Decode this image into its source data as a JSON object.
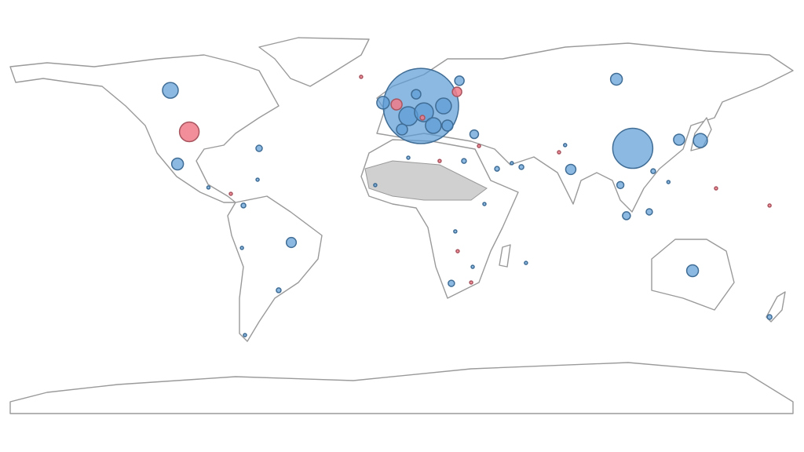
{
  "chart_data": {
    "type": "bubble-map",
    "series": [
      {
        "color": "#5b9bd5",
        "points": [
          {
            "lon": 8.7,
            "lat": 48.0,
            "size": 2300
          },
          {
            "lon": -106.5,
            "lat": 55.2,
            "size": 100
          },
          {
            "lon": -103.2,
            "lat": 21.3,
            "size": 56
          },
          {
            "lon": -65.7,
            "lat": 28.5,
            "size": 16
          },
          {
            "lon": -50.9,
            "lat": -14.8,
            "size": 40
          },
          {
            "lon": 106.1,
            "lat": 28.5,
            "size": 650
          },
          {
            "lon": 98.6,
            "lat": 60.3,
            "size": 56
          },
          {
            "lon": 137.2,
            "lat": 32.1,
            "size": 80
          },
          {
            "lon": 127.4,
            "lat": 32.5,
            "size": 49
          },
          {
            "lon": 77.6,
            "lat": 18.8,
            "size": 42
          },
          {
            "lon": 133.6,
            "lat": -27.8,
            "size": 56
          },
          {
            "lon": 33.2,
            "lat": 35.0,
            "size": 30
          },
          {
            "lon": 103.2,
            "lat": -2.5,
            "size": 25
          },
          {
            "lon": 113.7,
            "lat": -0.7,
            "size": 16
          },
          {
            "lon": 100.4,
            "lat": 11.6,
            "size": 20
          },
          {
            "lon": 169.0,
            "lat": -49.1,
            "size": 9
          },
          {
            "lon": -8.7,
            "lat": 49.5,
            "size": 64
          },
          {
            "lon": 2.9,
            "lat": 43.3,
            "size": 144
          },
          {
            "lon": 10.1,
            "lat": 45.1,
            "size": 144
          },
          {
            "lon": 19.1,
            "lat": 48.0,
            "size": 100
          },
          {
            "lon": 14.4,
            "lat": 39.0,
            "size": 100
          },
          {
            "lon": 0.0,
            "lat": 37.2,
            "size": 49
          },
          {
            "lon": 26.4,
            "lat": 59.6,
            "size": 36
          },
          {
            "lon": 20.9,
            "lat": 39.0,
            "size": 49
          },
          {
            "lon": 6.5,
            "lat": 53.4,
            "size": 36
          },
          {
            "lon": 22.7,
            "lat": -33.6,
            "size": 16
          },
          {
            "lon": -56.7,
            "lat": -36.8,
            "size": 9
          },
          {
            "lon": -72.2,
            "lat": -57.4,
            "size": 4
          },
          {
            "lon": -73.6,
            "lat": -17.3,
            "size": 4
          },
          {
            "lon": 28.5,
            "lat": 22.7,
            "size": 9
          },
          {
            "lon": 50.5,
            "lat": 21.7,
            "size": 4
          },
          {
            "lon": 75.0,
            "lat": 30.0,
            "size": 4
          },
          {
            "lon": 115.5,
            "lat": 18.0,
            "size": 9
          },
          {
            "lon": 54.9,
            "lat": 19.9,
            "size": 9
          },
          {
            "lon": 43.7,
            "lat": 19.1,
            "size": 9
          },
          {
            "lon": 2.9,
            "lat": 24.2,
            "size": 4
          },
          {
            "lon": 37.9,
            "lat": 2.9,
            "size": 4
          },
          {
            "lon": 24.5,
            "lat": -9.7,
            "size": 4
          },
          {
            "lon": 32.5,
            "lat": -26.0,
            "size": 4
          },
          {
            "lon": 57.0,
            "lat": -24.2,
            "size": 4
          },
          {
            "lon": -12.3,
            "lat": 11.6,
            "size": 4
          },
          {
            "lon": -72.9,
            "lat": 2.2,
            "size": 9
          },
          {
            "lon": -89.0,
            "lat": 10.5,
            "size": 4
          },
          {
            "lon": -66.4,
            "lat": 14.1,
            "size": 4
          },
          {
            "lon": 122.5,
            "lat": 13.0,
            "size": 4
          }
        ]
      },
      {
        "color": "#f07a88",
        "points": [
          {
            "lon": -97.8,
            "lat": 36.1,
            "size": 156
          },
          {
            "lon": -2.5,
            "lat": 48.7,
            "size": 49
          },
          {
            "lon": 25.3,
            "lat": 54.5,
            "size": 36
          },
          {
            "lon": 9.4,
            "lat": 42.6,
            "size": 9
          },
          {
            "lon": -18.8,
            "lat": 61.4,
            "size": 4
          },
          {
            "lon": 35.4,
            "lat": 29.6,
            "size": 4
          },
          {
            "lon": 25.6,
            "lat": -18.8,
            "size": 4
          },
          {
            "lon": 31.8,
            "lat": -33.2,
            "size": 4
          },
          {
            "lon": 144.4,
            "lat": 10.1,
            "size": 4
          },
          {
            "lon": 169.0,
            "lat": 2.2,
            "size": 4
          },
          {
            "lon": 17.3,
            "lat": 22.7,
            "size": 4
          },
          {
            "lon": -78.7,
            "lat": 7.6,
            "size": 4
          },
          {
            "lon": 72.2,
            "lat": 26.7,
            "size": 4
          }
        ]
      }
    ]
  }
}
